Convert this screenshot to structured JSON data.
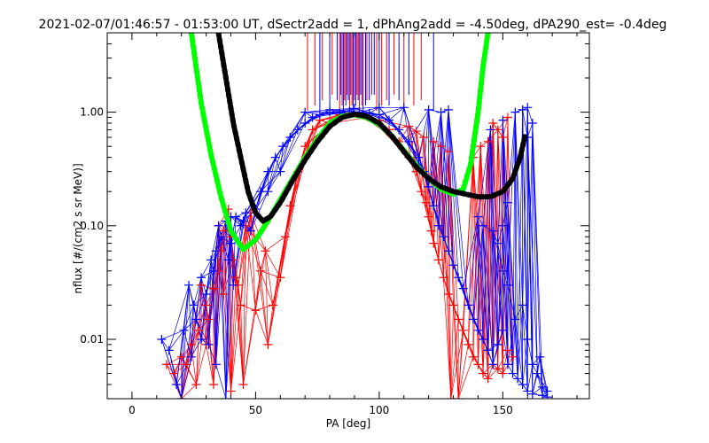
{
  "chart_data": {
    "type": "scatter",
    "title": "2021-02-07/01:46:57 - 01:53:00 UT, dSectr2add = 1, dPhAng2add = -4.50deg, dPA290_est=  -0.4deg",
    "xlabel": "PA [deg]",
    "ylabel": "nflux [#/(cm2 s sr MeV)]",
    "xlim": [
      -10,
      185
    ],
    "ylim": [
      0.003,
      5.0
    ],
    "yscale": "log",
    "grid": false,
    "x_ticks": [
      0,
      50,
      100,
      150
    ],
    "x_tick_labels": [
      "0",
      "50",
      "100",
      "150"
    ],
    "y_ticks": [
      1.0,
      0.1,
      0.01
    ],
    "y_tick_labels": [
      "1.00",
      "0.10",
      "0.01"
    ],
    "colors": {
      "red_series": "#ff0000",
      "blue_series": "#0000ff",
      "green_fit": "#00ff00",
      "black_fit": "#000000"
    },
    "series": [
      {
        "color": "#00ff00",
        "style": "thick-dashed",
        "x": [
          24,
          28,
          32,
          36,
          40,
          45,
          50,
          55,
          60,
          65,
          70,
          75,
          80,
          85,
          90,
          95,
          100,
          105,
          110,
          115,
          120,
          125,
          130,
          134,
          137,
          140,
          142,
          144
        ],
        "y": [
          5.0,
          1.2,
          0.42,
          0.18,
          0.09,
          0.062,
          0.075,
          0.11,
          0.17,
          0.26,
          0.4,
          0.58,
          0.8,
          0.92,
          0.95,
          0.9,
          0.78,
          0.62,
          0.46,
          0.34,
          0.26,
          0.21,
          0.19,
          0.21,
          0.35,
          1.0,
          2.5,
          5.0
        ]
      },
      {
        "color": "#000000",
        "style": "thick-dashed",
        "x": [
          35,
          38,
          41,
          44,
          47,
          50,
          53,
          56,
          60,
          65,
          70,
          75,
          80,
          85,
          90,
          95,
          100,
          105,
          110,
          115,
          120,
          125,
          130,
          135,
          140,
          145,
          150,
          154,
          157,
          159
        ],
        "y": [
          5.0,
          2.0,
          0.8,
          0.4,
          0.2,
          0.13,
          0.11,
          0.12,
          0.16,
          0.25,
          0.38,
          0.55,
          0.75,
          0.9,
          0.96,
          0.92,
          0.8,
          0.62,
          0.45,
          0.33,
          0.26,
          0.22,
          0.2,
          0.19,
          0.18,
          0.18,
          0.2,
          0.26,
          0.4,
          0.62
        ]
      }
    ],
    "markers": {
      "red": [
        [
          14,
          0.006
        ],
        [
          17,
          0.005
        ],
        [
          20,
          0.007
        ],
        [
          22,
          0.006
        ],
        [
          24,
          0.009
        ],
        [
          27,
          0.012
        ],
        [
          30,
          0.02
        ],
        [
          31,
          0.015
        ],
        [
          33,
          0.028
        ],
        [
          35,
          0.04
        ],
        [
          36,
          0.06
        ],
        [
          37,
          0.09
        ],
        [
          39,
          0.14
        ],
        [
          40,
          0.08
        ],
        [
          41,
          0.05
        ],
        [
          42,
          0.035
        ],
        [
          43,
          0.03
        ],
        [
          44,
          0.02
        ],
        [
          46,
          0.1
        ],
        [
          48,
          0.13
        ],
        [
          50,
          0.018
        ],
        [
          52,
          0.04
        ],
        [
          54,
          0.06
        ],
        [
          55,
          0.009
        ],
        [
          57,
          0.02
        ],
        [
          60,
          0.035
        ],
        [
          62,
          0.08
        ],
        [
          64,
          0.15
        ],
        [
          67,
          0.3
        ],
        [
          70,
          0.5
        ],
        [
          73,
          0.7
        ],
        [
          76,
          0.85
        ],
        [
          80,
          0.8
        ],
        [
          84,
          0.95
        ],
        [
          88,
          0.98
        ],
        [
          92,
          0.96
        ],
        [
          96,
          0.9
        ],
        [
          100,
          0.85
        ],
        [
          104,
          0.7
        ],
        [
          108,
          0.55
        ],
        [
          112,
          0.4
        ],
        [
          115,
          0.3
        ],
        [
          117,
          0.2
        ],
        [
          119,
          0.16
        ],
        [
          120,
          0.12
        ],
        [
          121,
          0.09
        ],
        [
          122,
          0.07
        ],
        [
          124,
          0.05
        ],
        [
          126,
          0.035
        ],
        [
          128,
          0.025
        ],
        [
          130,
          0.02
        ],
        [
          132,
          0.015
        ],
        [
          134,
          0.012
        ],
        [
          136,
          0.009
        ],
        [
          138,
          0.007
        ],
        [
          140,
          0.006
        ],
        [
          142,
          0.005
        ],
        [
          144,
          0.0045
        ],
        [
          146,
          0.006
        ],
        [
          148,
          0.0055
        ],
        [
          150,
          0.005
        ],
        [
          152,
          0.008
        ],
        [
          154,
          0.007
        ],
        [
          138,
          0.4
        ],
        [
          141,
          0.5
        ],
        [
          144,
          0.55
        ],
        [
          146,
          0.8
        ],
        [
          148,
          0.7
        ],
        [
          150,
          0.6
        ],
        [
          152,
          0.9
        ],
        [
          132,
          0.003
        ],
        [
          129,
          0.003
        ],
        [
          30,
          0.009
        ],
        [
          33,
          0.004
        ],
        [
          26,
          0.004
        ],
        [
          20,
          0.003
        ],
        [
          45,
          0.004
        ],
        [
          40,
          0.0035
        ],
        [
          28,
          0.03
        ],
        [
          35,
          0.1
        ],
        [
          37,
          0.025
        ],
        [
          112,
          0.75
        ],
        [
          115,
          0.68
        ],
        [
          118,
          0.6
        ],
        [
          122,
          0.55
        ],
        [
          125,
          0.5
        ],
        [
          128,
          0.45
        ]
      ],
      "blue": [
        [
          12,
          0.01
        ],
        [
          15,
          0.008
        ],
        [
          18,
          0.004
        ],
        [
          21,
          0.012
        ],
        [
          24,
          0.007
        ],
        [
          26,
          0.015
        ],
        [
          28,
          0.01
        ],
        [
          30,
          0.025
        ],
        [
          31,
          0.009
        ],
        [
          33,
          0.04
        ],
        [
          34,
          0.06
        ],
        [
          36,
          0.08
        ],
        [
          38,
          0.11
        ],
        [
          39,
          0.05
        ],
        [
          40,
          0.07
        ],
        [
          41,
          0.03
        ],
        [
          42,
          0.12
        ],
        [
          44,
          0.1
        ],
        [
          46,
          0.13
        ],
        [
          48,
          0.09
        ],
        [
          50,
          0.14
        ],
        [
          52,
          0.2
        ],
        [
          55,
          0.3
        ],
        [
          58,
          0.4
        ],
        [
          61,
          0.5
        ],
        [
          64,
          0.6
        ],
        [
          67,
          0.7
        ],
        [
          70,
          0.8
        ],
        [
          73,
          0.9
        ],
        [
          76,
          0.95
        ],
        [
          80,
          1.0
        ],
        [
          84,
          0.98
        ],
        [
          88,
          1.02
        ],
        [
          92,
          1.0
        ],
        [
          96,
          0.98
        ],
        [
          100,
          0.95
        ],
        [
          104,
          0.85
        ],
        [
          108,
          0.7
        ],
        [
          112,
          0.55
        ],
        [
          116,
          0.4
        ],
        [
          118,
          0.3
        ],
        [
          120,
          0.22
        ],
        [
          122,
          0.15
        ],
        [
          124,
          0.1
        ],
        [
          126,
          0.08
        ],
        [
          128,
          0.06
        ],
        [
          130,
          0.045
        ],
        [
          132,
          0.035
        ],
        [
          134,
          0.028
        ],
        [
          136,
          0.02
        ],
        [
          138,
          0.015
        ],
        [
          140,
          0.012
        ],
        [
          142,
          0.01
        ],
        [
          144,
          0.008
        ],
        [
          146,
          0.006
        ],
        [
          148,
          0.009
        ],
        [
          150,
          0.012
        ],
        [
          152,
          0.006
        ],
        [
          154,
          0.005
        ],
        [
          156,
          0.0045
        ],
        [
          158,
          0.004
        ],
        [
          160,
          0.0035
        ],
        [
          162,
          0.006
        ],
        [
          164,
          0.005
        ],
        [
          166,
          0.0038
        ],
        [
          168,
          0.0035
        ],
        [
          160,
          0.01
        ],
        [
          165,
          0.007
        ],
        [
          155,
          0.015
        ],
        [
          158,
          0.02
        ],
        [
          152,
          0.03
        ],
        [
          150,
          0.04
        ],
        [
          148,
          0.07
        ],
        [
          146,
          0.09
        ],
        [
          150,
          0.1
        ],
        [
          152,
          0.16
        ],
        [
          155,
          1.0
        ],
        [
          158,
          1.05
        ],
        [
          160,
          1.1
        ],
        [
          162,
          0.8
        ],
        [
          160,
          0.6
        ],
        [
          150,
          0.85
        ],
        [
          145,
          0.7
        ],
        [
          140,
          0.12
        ],
        [
          142,
          0.1
        ],
        [
          125,
          1.0
        ],
        [
          128,
          1.05
        ],
        [
          120,
          1.05
        ],
        [
          110,
          1.1
        ],
        [
          100,
          1.1
        ],
        [
          90,
          1.08
        ],
        [
          80,
          1.05
        ],
        [
          70,
          1.0
        ],
        [
          60,
          0.3
        ],
        [
          55,
          0.2
        ],
        [
          45,
          0.11
        ],
        [
          40,
          0.12
        ],
        [
          35,
          0.1
        ],
        [
          32,
          0.05
        ],
        [
          28,
          0.035
        ],
        [
          25,
          0.02
        ],
        [
          23,
          0.03
        ],
        [
          20,
          0.003
        ],
        [
          34,
          0.006
        ],
        [
          38,
          0.003
        ],
        [
          162,
          0.0033
        ],
        [
          166,
          0.0032
        ],
        [
          168,
          0.0031
        ]
      ]
    },
    "vertical_lines": {
      "red": [
        71,
        74,
        77,
        81,
        84,
        85,
        86,
        87,
        88,
        89,
        90,
        91,
        92,
        93,
        95,
        97,
        99,
        101,
        103,
        106,
        110,
        114,
        117
      ],
      "blue": [
        76,
        80,
        83,
        84.5,
        85.5,
        86.5,
        87.5,
        88.5,
        89.5,
        90.5,
        91.5,
        92.5,
        93.5,
        94.5,
        96,
        98,
        100,
        104,
        108,
        112,
        122
      ]
    }
  }
}
